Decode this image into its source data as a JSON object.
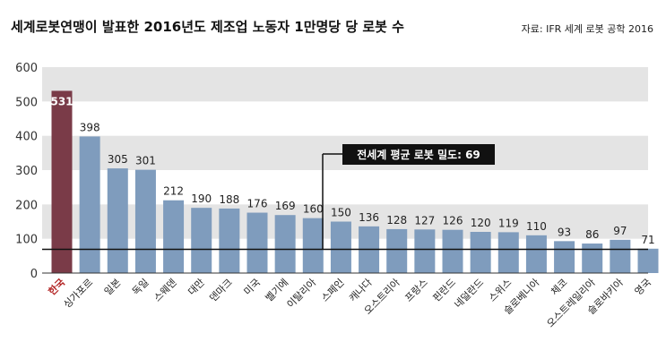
{
  "chart_data": {
    "type": "bar",
    "title": "세계로봇연맹이 발표한 2016년도 제조업 노동자 1만명당 당 로봇 수",
    "source": "자료: IFR 세계 로봇 공학 2016",
    "categories": [
      "한국",
      "싱가포르",
      "일본",
      "독일",
      "스웨덴",
      "대만",
      "덴마크",
      "미국",
      "벨기에",
      "이탈리아",
      "스페인",
      "캐나다",
      "오스트리아",
      "프랑스",
      "핀란드",
      "네덜란드",
      "스위스",
      "슬로베니아",
      "체코",
      "오스트레일리아",
      "슬로바키아",
      "영국"
    ],
    "values": [
      531,
      398,
      305,
      301,
      212,
      190,
      188,
      176,
      169,
      160,
      150,
      136,
      128,
      127,
      126,
      120,
      119,
      110,
      93,
      86,
      97,
      71
    ],
    "highlight_index": 0,
    "ylim": [
      0,
      600
    ],
    "yticks": [
      0,
      100,
      200,
      300,
      400,
      500,
      600
    ],
    "reference_line": {
      "value": 69,
      "label": "전세계 평균 로봇 밀도: 69"
    },
    "colors": {
      "bar": "#7f9cbd",
      "highlight": "#7a3b48",
      "band": "#e4e4e4",
      "note_bg": "#111111",
      "line": "#111111"
    }
  }
}
